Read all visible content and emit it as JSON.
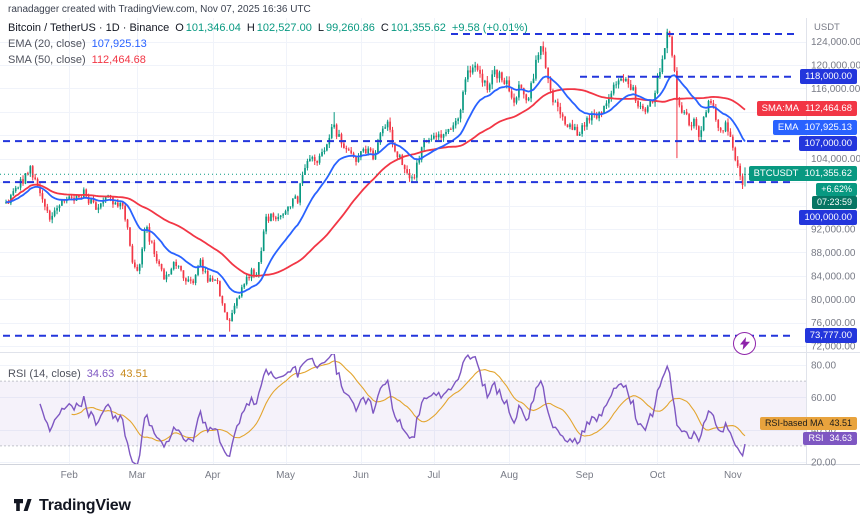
{
  "top_bar": {
    "attribution": "ranadagger created with TradingView.com, Nov 07, 2025 16:36 UTC"
  },
  "legend": {
    "title": "Bitcoin / TetherUS · 1D · Binance",
    "o_label": "O",
    "o": "101,346.04",
    "h_label": "H",
    "h": "102,527.00",
    "l_label": "L",
    "l": "99,260.86",
    "c_label": "C",
    "c": "101,355.62",
    "change": "+9.58 (+0.01%)",
    "ema_label": "EMA (20, close)",
    "ema_value": "107,925.13",
    "sma_label": "SMA (50, close)",
    "sma_value": "112,464.68"
  },
  "rsi_legend": {
    "label": "RSI (14, close)",
    "value": "34.63",
    "ma_value": "43.51"
  },
  "axis": {
    "currency": "USDT",
    "labels": [
      {
        "text": "124,000.00",
        "p": 124000
      },
      {
        "text": "120,000.00",
        "p": 120000
      },
      {
        "text": "116,000.00",
        "p": 116000
      },
      {
        "text": "104,000.00",
        "p": 104000
      },
      {
        "text": "92,000.00",
        "p": 92000
      },
      {
        "text": "88,000.00",
        "p": 88000
      },
      {
        "text": "84,000.00",
        "p": 84000
      },
      {
        "text": "80,000.00",
        "p": 80000
      },
      {
        "text": "76,000.00",
        "p": 76000
      },
      {
        "text": "72,000.00",
        "p": 72000
      }
    ],
    "levels": [
      "118,000.00",
      "107,000.00",
      "100,000.00",
      "73,777.00"
    ]
  },
  "badges": {
    "sma": {
      "label": "SMA:MA",
      "value": "112,464.68"
    },
    "ema": {
      "label": "EMA",
      "value": "107,925.13"
    },
    "price": {
      "symbol": "BTCUSDT",
      "value": "101,355.62"
    },
    "pct": "+6.62%",
    "countdown": "07:23:59",
    "rsi_ma": {
      "label": "RSI-based MA",
      "value": "43.51"
    },
    "rsi": {
      "label": "RSI",
      "value": "34.63"
    }
  },
  "footer": {
    "brand": "TradingView"
  },
  "colors": {
    "up": "#089981",
    "down": "#f23645",
    "ema": "#2962ff",
    "sma": "#f23645",
    "level": "#2336dc",
    "rsi": "#7e57c2",
    "rsi_ma": "#e3a52f",
    "axis_text": "#787b86",
    "grid": "#f0f3fa"
  },
  "chart_data": [
    {
      "type": "candlestick",
      "title": "Bitcoin / TetherUS · 1D · Binance",
      "symbol": "BTCUSDT",
      "exchange": "Binance",
      "interval": "1D",
      "ylim": [
        71000,
        127000
      ],
      "last": {
        "open": 101346.04,
        "high": 102527.0,
        "low": 99260.86,
        "close": 101355.62,
        "change_abs": 9.58,
        "change_pct": 0.01
      },
      "indicators": [
        {
          "name": "EMA (20, close)",
          "value": 107925.13
        },
        {
          "name": "SMA (50, close)",
          "value": 112464.68
        }
      ],
      "levels": [
        {
          "price": 125300,
          "from": 0.56,
          "to": 0.985
        },
        {
          "price": 118000,
          "from": 0.72,
          "to": 0.985
        },
        {
          "price": 107000,
          "from": 0.004,
          "to": 0.985
        },
        {
          "price": 100000,
          "from": 0.004,
          "to": 0.985
        },
        {
          "price": 73777,
          "from": 0.004,
          "to": 0.985
        }
      ],
      "days_total": 305,
      "x_ticks": [
        {
          "label": "Feb",
          "day": 26
        },
        {
          "label": "Mar",
          "day": 54
        },
        {
          "label": "Apr",
          "day": 85
        },
        {
          "label": "May",
          "day": 115
        },
        {
          "label": "Jun",
          "day": 146
        },
        {
          "label": "Jul",
          "day": 176
        },
        {
          "label": "Aug",
          "day": 207
        },
        {
          "label": "Sep",
          "day": 238
        },
        {
          "label": "Oct",
          "day": 268
        },
        {
          "label": "Nov",
          "day": 299
        }
      ],
      "price_path_anchors": [
        [
          0.0,
          96500
        ],
        [
          0.018,
          99500
        ],
        [
          0.033,
          102000
        ],
        [
          0.048,
          97500
        ],
        [
          0.06,
          94000
        ],
        [
          0.075,
          97000
        ],
        [
          0.09,
          96800
        ],
        [
          0.105,
          98200
        ],
        [
          0.12,
          95800
        ],
        [
          0.135,
          97300
        ],
        [
          0.148,
          96200
        ],
        [
          0.158,
          95500
        ],
        [
          0.165,
          91300
        ],
        [
          0.172,
          86200
        ],
        [
          0.18,
          84400
        ],
        [
          0.188,
          92800
        ],
        [
          0.195,
          90200
        ],
        [
          0.205,
          86200
        ],
        [
          0.215,
          83300
        ],
        [
          0.228,
          86800
        ],
        [
          0.24,
          84100
        ],
        [
          0.252,
          82400
        ],
        [
          0.263,
          86500
        ],
        [
          0.274,
          82800
        ],
        [
          0.285,
          83500
        ],
        [
          0.295,
          78300
        ],
        [
          0.303,
          75900
        ],
        [
          0.31,
          79600
        ],
        [
          0.32,
          82100
        ],
        [
          0.33,
          84500
        ],
        [
          0.34,
          84900
        ],
        [
          0.352,
          93400
        ],
        [
          0.362,
          94200
        ],
        [
          0.372,
          94000
        ],
        [
          0.385,
          96400
        ],
        [
          0.395,
          97100
        ],
        [
          0.403,
          102900
        ],
        [
          0.413,
          104000
        ],
        [
          0.423,
          103300
        ],
        [
          0.433,
          106800
        ],
        [
          0.443,
          109700
        ],
        [
          0.453,
          107200
        ],
        [
          0.463,
          105800
        ],
        [
          0.472,
          104100
        ],
        [
          0.487,
          105600
        ],
        [
          0.497,
          104200
        ],
        [
          0.507,
          107800
        ],
        [
          0.517,
          110000
        ],
        [
          0.527,
          105300
        ],
        [
          0.537,
          103600
        ],
        [
          0.549,
          99900
        ],
        [
          0.558,
          103500
        ],
        [
          0.568,
          107200
        ],
        [
          0.585,
          107900
        ],
        [
          0.595,
          108600
        ],
        [
          0.605,
          109800
        ],
        [
          0.615,
          112500
        ],
        [
          0.622,
          117800
        ],
        [
          0.632,
          119700
        ],
        [
          0.642,
          118100
        ],
        [
          0.652,
          116500
        ],
        [
          0.662,
          118900
        ],
        [
          0.672,
          117800
        ],
        [
          0.687,
          114200
        ],
        [
          0.697,
          116700
        ],
        [
          0.707,
          113900
        ],
        [
          0.717,
          120600
        ],
        [
          0.723,
          123900
        ],
        [
          0.733,
          117800
        ],
        [
          0.743,
          113200
        ],
        [
          0.753,
          111300
        ],
        [
          0.763,
          109500
        ],
        [
          0.773,
          108300
        ],
        [
          0.788,
          111400
        ],
        [
          0.798,
          110900
        ],
        [
          0.808,
          112500
        ],
        [
          0.818,
          115400
        ],
        [
          0.828,
          116400
        ],
        [
          0.838,
          117200
        ],
        [
          0.848,
          115900
        ],
        [
          0.858,
          112700
        ],
        [
          0.868,
          112300
        ],
        [
          0.876,
          114100
        ],
        [
          0.884,
          118900
        ],
        [
          0.89,
          122500
        ],
        [
          0.896,
          125800
        ],
        [
          0.902,
          121700
        ],
        [
          0.908,
          114800
        ],
        [
          0.914,
          111500
        ],
        [
          0.92,
          112800
        ],
        [
          0.926,
          108900
        ],
        [
          0.932,
          110500
        ],
        [
          0.938,
          107800
        ],
        [
          0.944,
          110400
        ],
        [
          0.95,
          113700
        ],
        [
          0.956,
          114100
        ],
        [
          0.962,
          110300
        ],
        [
          0.968,
          107600
        ],
        [
          0.974,
          109900
        ],
        [
          0.982,
          106400
        ],
        [
          0.987,
          103900
        ],
        [
          0.992,
          100800
        ],
        [
          0.996,
          99700
        ],
        [
          1.0,
          101355.62
        ]
      ],
      "wicks": [
        {
          "f": 0.303,
          "low": 74480
        },
        {
          "f": 0.443,
          "high": 111960
        },
        {
          "f": 0.896,
          "high": 126200
        },
        {
          "f": 0.908,
          "low": 104100
        }
      ]
    },
    {
      "type": "line",
      "title": "RSI (14, close)",
      "ylim": [
        0,
        100
      ],
      "band": [
        30,
        70
      ],
      "last": {
        "rsi": 34.63,
        "rsi_ma": 43.51
      },
      "axis_labels": [
        {
          "text": "80.00",
          "v": 80
        },
        {
          "text": "60.00",
          "v": 60
        },
        {
          "text": "40.00",
          "v": 40
        },
        {
          "text": "20.00",
          "v": 20
        }
      ]
    }
  ]
}
